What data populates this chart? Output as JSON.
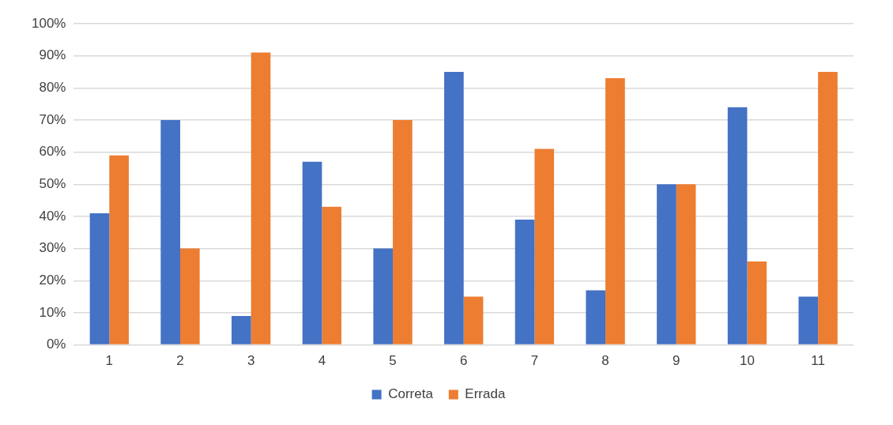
{
  "chart_data": {
    "type": "bar",
    "categories": [
      "1",
      "2",
      "3",
      "4",
      "5",
      "6",
      "7",
      "8",
      "9",
      "10",
      "11"
    ],
    "series": [
      {
        "name": "Correta",
        "color": "#4472c4",
        "values": [
          41,
          70,
          9,
          57,
          30,
          85,
          39,
          17,
          50,
          74,
          15
        ]
      },
      {
        "name": "Errada",
        "color": "#ed7d31",
        "values": [
          59,
          30,
          91,
          43,
          70,
          15,
          61,
          83,
          50,
          26,
          85
        ]
      }
    ],
    "ylim": [
      0,
      100
    ],
    "yticks": [
      {
        "value": 0,
        "label": "0%"
      },
      {
        "value": 10,
        "label": "10%"
      },
      {
        "value": 20,
        "label": "20%"
      },
      {
        "value": 30,
        "label": "30%"
      },
      {
        "value": 40,
        "label": "40%"
      },
      {
        "value": 50,
        "label": "50%"
      },
      {
        "value": 60,
        "label": "60%"
      },
      {
        "value": 70,
        "label": "70%"
      },
      {
        "value": 80,
        "label": "80%"
      },
      {
        "value": 90,
        "label": "90%"
      },
      {
        "value": 100,
        "label": "100%"
      }
    ],
    "grid": "y",
    "legend": "bottom"
  }
}
